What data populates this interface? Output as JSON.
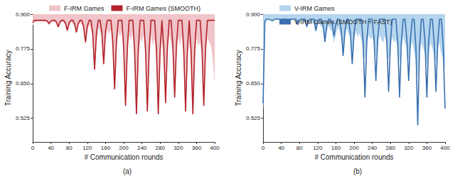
{
  "chart_data": [
    {
      "type": "line",
      "title": "(a)",
      "x_label": "# Communication rounds",
      "y_label": "Training Accuracy",
      "x": [
        0,
        4,
        8,
        12,
        16,
        20,
        24,
        28,
        32,
        36,
        40,
        44,
        48,
        52,
        56,
        60,
        64,
        68,
        72,
        76,
        80,
        84,
        88,
        92,
        96,
        100,
        104,
        108,
        112,
        116,
        120,
        124,
        128,
        132,
        136,
        140,
        144,
        148,
        152,
        156,
        160,
        164,
        168,
        172,
        176,
        180,
        184,
        188,
        192,
        196,
        200,
        204,
        208,
        212,
        216,
        220,
        224,
        228,
        232,
        236,
        240,
        244,
        248,
        252,
        256,
        260,
        264,
        268,
        272,
        276,
        280,
        284,
        288,
        292,
        296,
        300,
        304,
        308,
        312,
        316,
        320,
        324,
        328,
        332,
        336,
        340,
        344,
        348,
        352,
        356,
        360,
        364,
        368,
        372,
        376,
        380,
        384,
        388,
        392,
        396,
        400
      ],
      "xlim": [
        0,
        400
      ],
      "xticks": [
        0,
        40,
        80,
        120,
        160,
        200,
        240,
        280,
        320,
        360,
        400
      ],
      "ylim": [
        0.44,
        0.9
      ],
      "yticks": [
        0.525,
        {
          "value": 0.65,
          "label": "0.650"
        },
        0.775,
        {
          "value": 0.9,
          "label": "0.900"
        }
      ],
      "grid": false,
      "legend": "top",
      "series": [
        {
          "name": "F-IRM Games",
          "type": "area",
          "color": "#f0c4c8",
          "values": [
            0.86,
            0.875,
            0.872,
            0.876,
            0.874,
            0.876,
            0.873,
            0.875,
            0.872,
            0.86,
            0.872,
            0.875,
            0.873,
            0.868,
            0.85,
            0.868,
            0.874,
            0.872,
            0.862,
            0.835,
            0.862,
            0.872,
            0.868,
            0.858,
            0.83,
            0.86,
            0.87,
            0.864,
            0.85,
            0.79,
            0.845,
            0.862,
            0.85,
            0.82,
            0.71,
            0.8,
            0.852,
            0.84,
            0.82,
            0.73,
            0.81,
            0.845,
            0.83,
            0.85,
            0.78,
            0.65,
            0.79,
            0.84,
            0.82,
            0.845,
            0.77,
            0.59,
            0.76,
            0.83,
            0.81,
            0.84,
            0.75,
            0.57,
            0.74,
            0.82,
            0.8,
            0.835,
            0.76,
            0.58,
            0.75,
            0.83,
            0.79,
            0.82,
            0.75,
            0.57,
            0.76,
            0.81,
            0.74,
            0.61,
            0.77,
            0.83,
            0.8,
            0.77,
            0.62,
            0.78,
            0.82,
            0.79,
            0.83,
            0.75,
            0.58,
            0.76,
            0.8,
            0.74,
            0.56,
            0.75,
            0.82,
            0.79,
            0.8,
            0.76,
            0.59,
            0.77,
            0.82,
            0.8,
            0.79,
            0.74,
            0.66
          ]
        },
        {
          "name": "F-IRM Games (SMOOTH)",
          "type": "line",
          "color": "#b3242c",
          "values": [
            0.87,
            0.878,
            0.878,
            0.878,
            0.878,
            0.878,
            0.878,
            0.878,
            0.875,
            0.866,
            0.875,
            0.878,
            0.878,
            0.872,
            0.855,
            0.872,
            0.878,
            0.878,
            0.868,
            0.842,
            0.868,
            0.878,
            0.878,
            0.865,
            0.835,
            0.866,
            0.878,
            0.878,
            0.855,
            0.8,
            0.856,
            0.878,
            0.878,
            0.83,
            0.7,
            0.83,
            0.878,
            0.878,
            0.835,
            0.72,
            0.84,
            0.878,
            0.878,
            0.878,
            0.8,
            0.63,
            0.8,
            0.878,
            0.878,
            0.878,
            0.78,
            0.57,
            0.78,
            0.878,
            0.878,
            0.878,
            0.77,
            0.54,
            0.77,
            0.878,
            0.878,
            0.878,
            0.77,
            0.55,
            0.77,
            0.878,
            0.878,
            0.878,
            0.77,
            0.54,
            0.77,
            0.878,
            0.78,
            0.58,
            0.78,
            0.878,
            0.878,
            0.79,
            0.6,
            0.79,
            0.878,
            0.878,
            0.878,
            0.77,
            0.55,
            0.77,
            0.878,
            0.77,
            0.54,
            0.77,
            0.878,
            0.878,
            0.878,
            0.78,
            0.57,
            0.78,
            0.878,
            0.878,
            0.878,
            0.878,
            0.878
          ]
        }
      ]
    },
    {
      "type": "line",
      "title": "(b)",
      "x_label": "# Communication rounds",
      "y_label": "Training Accuracy",
      "x": [
        0,
        4,
        8,
        12,
        16,
        20,
        24,
        28,
        32,
        36,
        40,
        44,
        48,
        52,
        56,
        60,
        64,
        68,
        72,
        76,
        80,
        84,
        88,
        92,
        96,
        100,
        104,
        108,
        112,
        116,
        120,
        124,
        128,
        132,
        136,
        140,
        144,
        148,
        152,
        156,
        160,
        164,
        168,
        172,
        176,
        180,
        184,
        188,
        192,
        196,
        200,
        204,
        208,
        212,
        216,
        220,
        224,
        228,
        232,
        236,
        240,
        244,
        248,
        252,
        256,
        260,
        264,
        268,
        272,
        276,
        280,
        284,
        288,
        292,
        296,
        300,
        304,
        308,
        312,
        316,
        320,
        324,
        328,
        332,
        336,
        340,
        344,
        348,
        352,
        356,
        360,
        364,
        368,
        372,
        376,
        380,
        384,
        388,
        392,
        396,
        400
      ],
      "xlim": [
        0,
        400
      ],
      "xticks": [
        0,
        40,
        80,
        120,
        160,
        200,
        240,
        280,
        320,
        360,
        400
      ],
      "ylim": [
        0.44,
        0.9
      ],
      "yticks": [
        0.525,
        {
          "value": 0.65,
          "label": "0.650"
        },
        0.775,
        {
          "value": 0.9,
          "label": "0.900"
        }
      ],
      "grid": false,
      "legend": "top",
      "series": [
        {
          "name": "V-IRM Games",
          "type": "area",
          "color": "#b4d5ee",
          "values": [
            0.56,
            0.86,
            0.884,
            0.882,
            0.883,
            0.878,
            0.882,
            0.884,
            0.883,
            0.881,
            0.874,
            0.882,
            0.884,
            0.88,
            0.868,
            0.882,
            0.878,
            0.883,
            0.88,
            0.86,
            0.876,
            0.882,
            0.878,
            0.872,
            0.852,
            0.874,
            0.88,
            0.87,
            0.865,
            0.84,
            0.865,
            0.87,
            0.855,
            0.85,
            0.8,
            0.84,
            0.86,
            0.845,
            0.84,
            0.8,
            0.83,
            0.855,
            0.84,
            0.82,
            0.76,
            0.82,
            0.85,
            0.83,
            0.82,
            0.75,
            0.81,
            0.84,
            0.82,
            0.835,
            0.81,
            0.78,
            0.74,
            0.79,
            0.83,
            0.81,
            0.82,
            0.8,
            0.75,
            0.79,
            0.83,
            0.81,
            0.8,
            0.825,
            0.79,
            0.74,
            0.78,
            0.82,
            0.8,
            0.81,
            0.78,
            0.73,
            0.79,
            0.82,
            0.8,
            0.78,
            0.74,
            0.79,
            0.8,
            0.77,
            0.74,
            0.68,
            0.76,
            0.8,
            0.78,
            0.76,
            0.72,
            0.77,
            0.8,
            0.78,
            0.76,
            0.73,
            0.78,
            0.8,
            0.76,
            0.74,
            0.7
          ]
        },
        {
          "name": "V-IRM Games (SMOOTH + FAST)",
          "type": "line",
          "color": "#3a70b0",
          "values": [
            0.58,
            0.875,
            0.882,
            0.882,
            0.88,
            0.876,
            0.88,
            0.882,
            0.882,
            0.882,
            0.874,
            0.882,
            0.882,
            0.882,
            0.87,
            0.882,
            0.882,
            0.882,
            0.882,
            0.862,
            0.878,
            0.882,
            0.882,
            0.882,
            0.855,
            0.876,
            0.882,
            0.882,
            0.882,
            0.84,
            0.872,
            0.882,
            0.882,
            0.86,
            0.8,
            0.86,
            0.882,
            0.882,
            0.865,
            0.82,
            0.865,
            0.882,
            0.882,
            0.84,
            0.75,
            0.84,
            0.882,
            0.882,
            0.83,
            0.72,
            0.83,
            0.882,
            0.882,
            0.882,
            0.882,
            0.8,
            0.6,
            0.8,
            0.882,
            0.882,
            0.882,
            0.81,
            0.66,
            0.81,
            0.882,
            0.882,
            0.882,
            0.882,
            0.8,
            0.62,
            0.8,
            0.882,
            0.882,
            0.882,
            0.8,
            0.6,
            0.8,
            0.882,
            0.882,
            0.81,
            0.66,
            0.81,
            0.882,
            0.882,
            0.78,
            0.5,
            0.78,
            0.882,
            0.882,
            0.8,
            0.6,
            0.8,
            0.882,
            0.882,
            0.8,
            0.62,
            0.8,
            0.882,
            0.882,
            0.78,
            0.56
          ]
        }
      ]
    }
  ]
}
